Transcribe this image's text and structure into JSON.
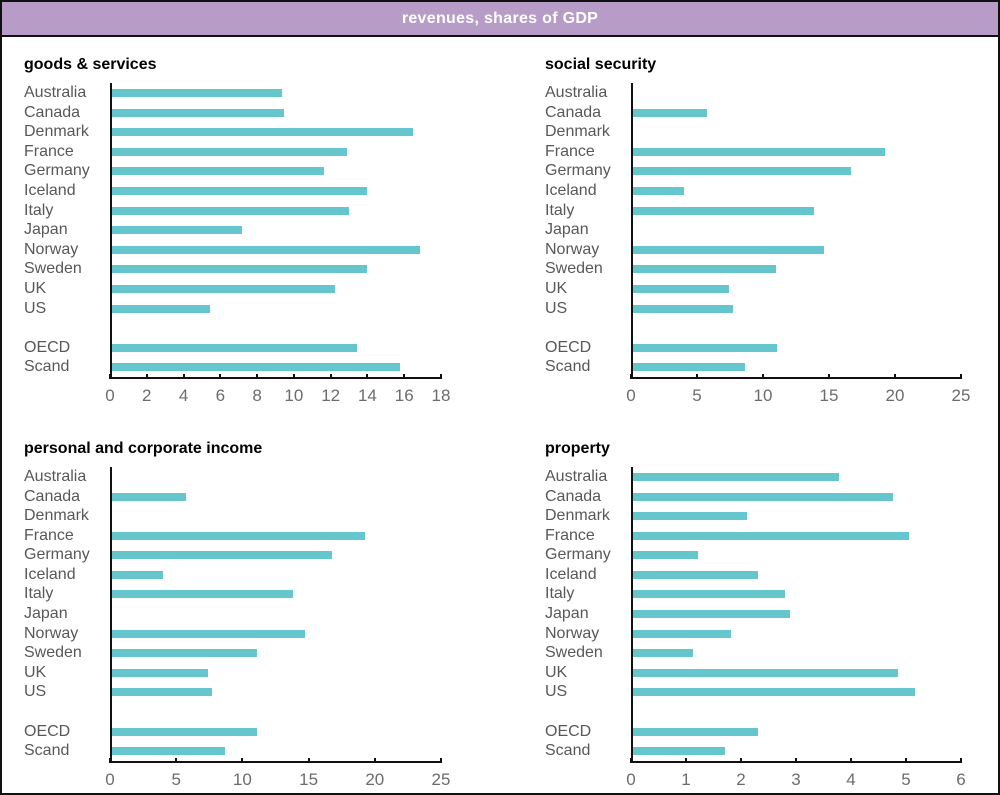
{
  "header": {
    "title": "revenues, shares of GDP",
    "bg_color": "#b89cc8",
    "text_color": "#ffffff"
  },
  "colors": {
    "bar": "#66c6cd",
    "axis": "#111111",
    "category_label": "#57585a",
    "tick_label": "#6b6c6e"
  },
  "chart_data": [
    {
      "type": "bar",
      "orientation": "horizontal",
      "title": "goods & services",
      "categories": [
        "Australia",
        "Canada",
        "Denmark",
        "France",
        "Germany",
        "Iceland",
        "Italy",
        "Japan",
        "Norway",
        "Sweden",
        "UK",
        "US",
        "OECD",
        "Scand"
      ],
      "values": [
        9.4,
        9.5,
        16.6,
        13.0,
        11.7,
        14.1,
        13.1,
        7.2,
        17.0,
        14.1,
        12.3,
        5.4,
        13.5,
        15.9
      ],
      "gap_after_index": 11,
      "xlim": [
        0,
        18
      ],
      "xticks": [
        0,
        2,
        4,
        6,
        8,
        10,
        12,
        14,
        16,
        18
      ],
      "grid": false,
      "legend": false
    },
    {
      "type": "bar",
      "orientation": "horizontal",
      "title": "social security",
      "categories": [
        "Australia",
        "Canada",
        "Denmark",
        "France",
        "Germany",
        "Iceland",
        "Italy",
        "Japan",
        "Norway",
        "Sweden",
        "UK",
        "US",
        "OECD",
        "Scand"
      ],
      "values": [
        0,
        5.7,
        0,
        19.4,
        16.8,
        3.9,
        13.9,
        0,
        14.7,
        11.0,
        7.4,
        7.7,
        11.1,
        8.6
      ],
      "gap_after_index": 11,
      "xlim": [
        0,
        25
      ],
      "xticks": [
        0,
        5,
        10,
        15,
        20,
        25
      ],
      "grid": false,
      "legend": false
    },
    {
      "type": "bar",
      "orientation": "horizontal",
      "title": "personal and corporate income",
      "categories": [
        "Australia",
        "Canada",
        "Denmark",
        "France",
        "Germany",
        "Iceland",
        "Italy",
        "Japan",
        "Norway",
        "Sweden",
        "UK",
        "US",
        "OECD",
        "Scand"
      ],
      "values": [
        0,
        5.7,
        0,
        19.4,
        16.9,
        3.9,
        13.9,
        0,
        14.8,
        11.1,
        7.4,
        7.7,
        11.1,
        8.7
      ],
      "gap_after_index": 11,
      "xlim": [
        0,
        25
      ],
      "xticks": [
        0,
        5,
        10,
        15,
        20,
        25
      ],
      "grid": false,
      "legend": false
    },
    {
      "type": "bar",
      "orientation": "horizontal",
      "title": "property",
      "categories": [
        "Australia",
        "Canada",
        "Denmark",
        "France",
        "Germany",
        "Iceland",
        "Italy",
        "Japan",
        "Norway",
        "Sweden",
        "UK",
        "US",
        "OECD",
        "Scand"
      ],
      "values": [
        3.8,
        4.8,
        2.1,
        5.1,
        1.2,
        2.3,
        2.8,
        2.9,
        1.8,
        1.1,
        4.9,
        5.2,
        2.3,
        1.7
      ],
      "gap_after_index": 11,
      "xlim": [
        0,
        6
      ],
      "xticks": [
        0,
        1,
        2,
        3,
        4,
        5,
        6
      ],
      "grid": false,
      "legend": false
    }
  ]
}
